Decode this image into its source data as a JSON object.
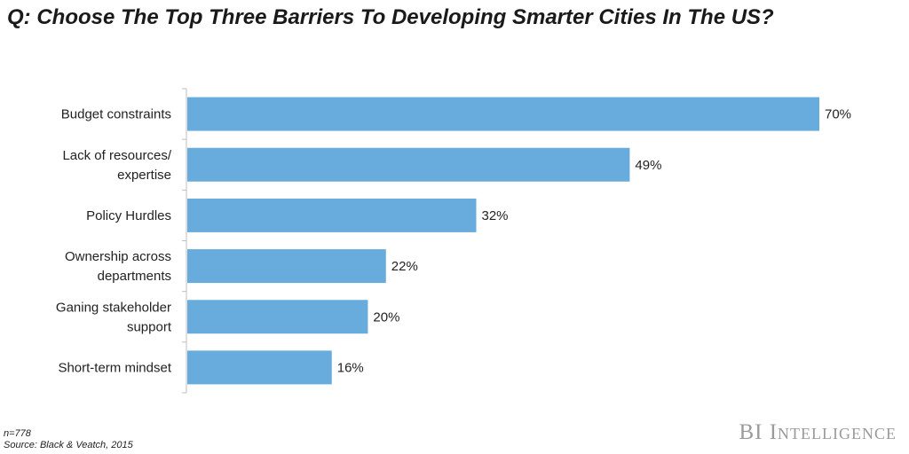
{
  "chart_data": {
    "type": "bar",
    "orientation": "horizontal",
    "title": "Q: Choose The Top Three Barriers To Developing Smarter Cities In The US?",
    "categories": [
      [
        "Budget constraints"
      ],
      [
        "Lack of resources/",
        "expertise"
      ],
      [
        "Policy Hurdles"
      ],
      [
        "Ownership across",
        "departments"
      ],
      [
        "Ganing stakeholder",
        "support"
      ],
      [
        "Short-term mindset"
      ]
    ],
    "values": [
      70,
      49,
      32,
      22,
      20,
      16
    ],
    "value_labels": [
      "70%",
      "49%",
      "32%",
      "22%",
      "20%",
      "16%"
    ],
    "unit": "%",
    "xlim": [
      0,
      70
    ],
    "colors": {
      "bar": "#67acdc"
    }
  },
  "footer": {
    "sample": "n=778",
    "source": "Source: Black & Veatch, 2015"
  },
  "brand": "BI Intelligence"
}
